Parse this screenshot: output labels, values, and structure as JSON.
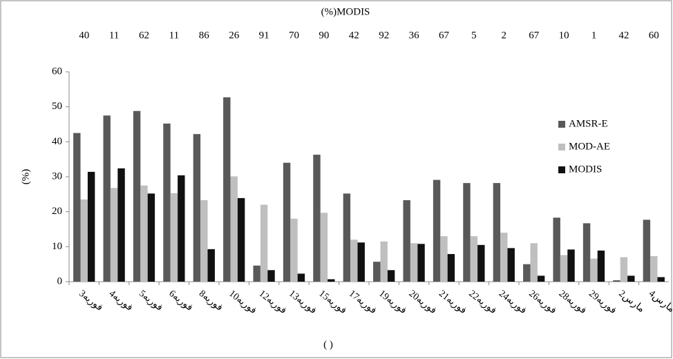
{
  "chart_data": {
    "type": "bar",
    "title": "(%)MODIS",
    "y_label": "(%)",
    "x_label": "(     )",
    "categories": [
      "3فوریه",
      "4فوریه",
      "5فوریه",
      "6فوریه",
      "8فوریه",
      "10فوریه",
      "12فوریه",
      "13فوریه",
      "15فوریه",
      "17فوریه",
      "19فوریه",
      "20فوریه",
      "21فوریه",
      "22فوریه",
      "24فوریه",
      "26فوریه",
      "28فوریه",
      "29فوریه",
      "2مارس",
      "4مارس"
    ],
    "top_labels": [
      "40",
      "11",
      "62",
      "11",
      "86",
      "26",
      "91",
      "70",
      "90",
      "42",
      "92",
      "36",
      "67",
      "5",
      "2",
      "67",
      "10",
      "1",
      "42",
      "60"
    ],
    "series": [
      {
        "name": "AMSR-E",
        "color": "#595959",
        "values": [
          42.5,
          47.5,
          48.8,
          45.2,
          42.2,
          52.7,
          4.6,
          34,
          36.3,
          25.2,
          5.7,
          23.3,
          29.1,
          28.2,
          28.2,
          5,
          18.3,
          16.7,
          0.4,
          17.7
        ]
      },
      {
        "name": "MOD-AE",
        "color": "#bfbfbf",
        "values": [
          23.5,
          26.8,
          27.5,
          25.3,
          23.3,
          30.1,
          22,
          18,
          19.7,
          12,
          11.5,
          11,
          13,
          13,
          14,
          11,
          7.6,
          6.6,
          7,
          7.3
        ]
      },
      {
        "name": "MODIS",
        "color": "#111111",
        "values": [
          31.4,
          32.4,
          25.2,
          30.4,
          9.3,
          23.9,
          3.3,
          2.3,
          0.7,
          11.2,
          3.3,
          10.8,
          7.9,
          10.5,
          9.6,
          1.7,
          9.2,
          8.9,
          1.7,
          1.3
        ]
      }
    ],
    "ylim": [
      0,
      60
    ],
    "yticks": [
      0,
      10,
      20,
      30,
      40,
      50,
      60
    ],
    "legend": "right"
  }
}
